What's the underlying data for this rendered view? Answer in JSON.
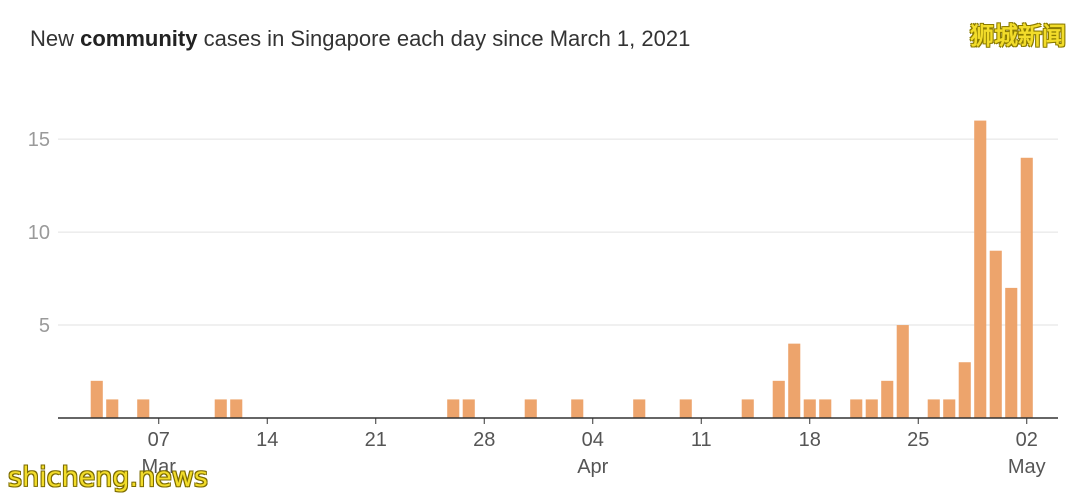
{
  "title_parts": {
    "pre": "New ",
    "bold": "community",
    "post": " cases in Singapore each day since March 1, 2021"
  },
  "watermarks": {
    "top_right": "狮城新闻",
    "bottom_left": "shicheng.news"
  },
  "colors": {
    "bar": "#eda46c",
    "grid": "#e2e2e2",
    "axis": "#333333"
  },
  "chart_data": {
    "type": "bar",
    "title": "New community cases in Singapore each day since March 1, 2021",
    "x_start": "2021-03-01",
    "x_end": "2021-05-03",
    "ylim": [
      0,
      17
    ],
    "yticks": [
      5,
      10,
      15
    ],
    "grid": true,
    "xticks": [
      {
        "date": "2021-03-07",
        "label": "07",
        "month": "Mar"
      },
      {
        "date": "2021-03-14",
        "label": "14"
      },
      {
        "date": "2021-03-21",
        "label": "21"
      },
      {
        "date": "2021-03-28",
        "label": "28"
      },
      {
        "date": "2021-04-04",
        "label": "04",
        "month": "Apr"
      },
      {
        "date": "2021-04-11",
        "label": "11"
      },
      {
        "date": "2021-04-18",
        "label": "18"
      },
      {
        "date": "2021-04-25",
        "label": "25"
      },
      {
        "date": "2021-05-02",
        "label": "02",
        "month": "May"
      }
    ],
    "points": [
      {
        "date": "2021-03-03",
        "value": 2
      },
      {
        "date": "2021-03-04",
        "value": 1
      },
      {
        "date": "2021-03-06",
        "value": 1
      },
      {
        "date": "2021-03-11",
        "value": 1
      },
      {
        "date": "2021-03-12",
        "value": 1
      },
      {
        "date": "2021-03-26",
        "value": 1
      },
      {
        "date": "2021-03-27",
        "value": 1
      },
      {
        "date": "2021-03-31",
        "value": 1
      },
      {
        "date": "2021-04-03",
        "value": 1
      },
      {
        "date": "2021-04-07",
        "value": 1
      },
      {
        "date": "2021-04-10",
        "value": 1
      },
      {
        "date": "2021-04-14",
        "value": 1
      },
      {
        "date": "2021-04-16",
        "value": 2
      },
      {
        "date": "2021-04-17",
        "value": 4
      },
      {
        "date": "2021-04-18",
        "value": 1
      },
      {
        "date": "2021-04-19",
        "value": 1
      },
      {
        "date": "2021-04-21",
        "value": 1
      },
      {
        "date": "2021-04-22",
        "value": 1
      },
      {
        "date": "2021-04-23",
        "value": 2
      },
      {
        "date": "2021-04-24",
        "value": 5
      },
      {
        "date": "2021-04-26",
        "value": 1
      },
      {
        "date": "2021-04-27",
        "value": 1
      },
      {
        "date": "2021-04-28",
        "value": 3
      },
      {
        "date": "2021-04-29",
        "value": 16
      },
      {
        "date": "2021-04-30",
        "value": 9
      },
      {
        "date": "2021-05-01",
        "value": 7
      },
      {
        "date": "2021-05-02",
        "value": 14
      }
    ]
  }
}
